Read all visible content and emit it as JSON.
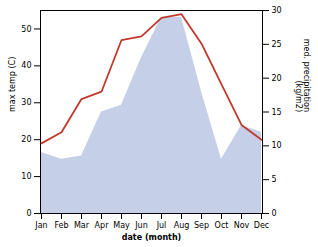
{
  "chart_data": {
    "type": "line",
    "categories": [
      "Jan",
      "Feb",
      "Mar",
      "Apr",
      "May",
      "Jun",
      "Jul",
      "Aug",
      "Sep",
      "Oct",
      "Nov",
      "Dec"
    ],
    "xlabel": "date (month)",
    "ylabel": "max temp (C)",
    "y2label": "med. precipitation\n(kg/m2)",
    "ylim": [
      0,
      55
    ],
    "yticks": [
      0,
      10,
      20,
      30,
      40,
      50
    ],
    "y2lim": [
      0,
      30
    ],
    "y2ticks": [
      0,
      5,
      10,
      15,
      20,
      25,
      30
    ],
    "series": [
      {
        "type": "area",
        "axis": "y2",
        "color": "#c5cfe8",
        "values": [
          9,
          8,
          8.5,
          15,
          16,
          23,
          29,
          29,
          18,
          8,
          13,
          12
        ]
      },
      {
        "type": "line",
        "color": "#c0392b",
        "values": [
          19,
          22,
          31,
          33,
          47,
          48,
          53,
          54,
          46,
          35,
          24,
          20
        ]
      }
    ]
  }
}
